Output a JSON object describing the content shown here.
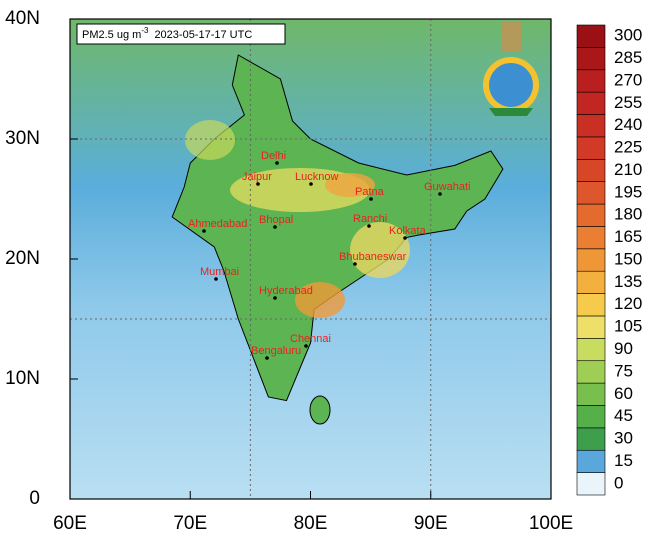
{
  "map": {
    "title_var": "PM2.5 ug m",
    "title_exp": "-3",
    "title_time": "2023-05-17-17 UTC",
    "xlim": [
      60,
      100
    ],
    "ylim": [
      0,
      40
    ],
    "xticks": [
      {
        "value": 60,
        "label": "60E"
      },
      {
        "value": 70,
        "label": "70E"
      },
      {
        "value": 80,
        "label": "80E"
      },
      {
        "value": 90,
        "label": "90E"
      },
      {
        "value": 100,
        "label": "100E"
      }
    ],
    "yticks": [
      0,
      {
        "value": 10,
        "label": "10N"
      },
      {
        "value": 20,
        "label": "20N"
      },
      {
        "value": 30,
        "label": "30N"
      },
      {
        "value": 40,
        "label": "40N"
      }
    ],
    "grid_x": [
      75,
      90
    ],
    "grid_y": [
      15,
      30
    ],
    "cities": [
      "Delhi",
      "Jaipur",
      "Lucknow",
      "Patna",
      "Guwahati",
      "Ahmedabad",
      "Bhopal",
      "Ranchi",
      "Kolkata",
      "Bhubaneswar",
      "Mumbai",
      "Hyderabad",
      "Chennai",
      "Bengaluru"
    ],
    "city_color": "#e8231e",
    "colorbar": {
      "ticks": [
        0,
        15,
        30,
        45,
        60,
        75,
        90,
        105,
        120,
        135,
        150,
        165,
        180,
        195,
        210,
        225,
        240,
        255,
        270,
        285,
        300
      ],
      "colors": [
        "#eaf5fb",
        "#5aa7dc",
        "#3d9f4c",
        "#55b04a",
        "#78bf4e",
        "#9fce55",
        "#c8dc5f",
        "#eedf68",
        "#f6cb4c",
        "#f4b03f",
        "#ef9637",
        "#ea7e32",
        "#e56a2e",
        "#de562b",
        "#d84628",
        "#d13a26",
        "#ca2f24",
        "#c22622",
        "#b81f1e",
        "#aa1719",
        "#9b1015"
      ]
    }
  }
}
